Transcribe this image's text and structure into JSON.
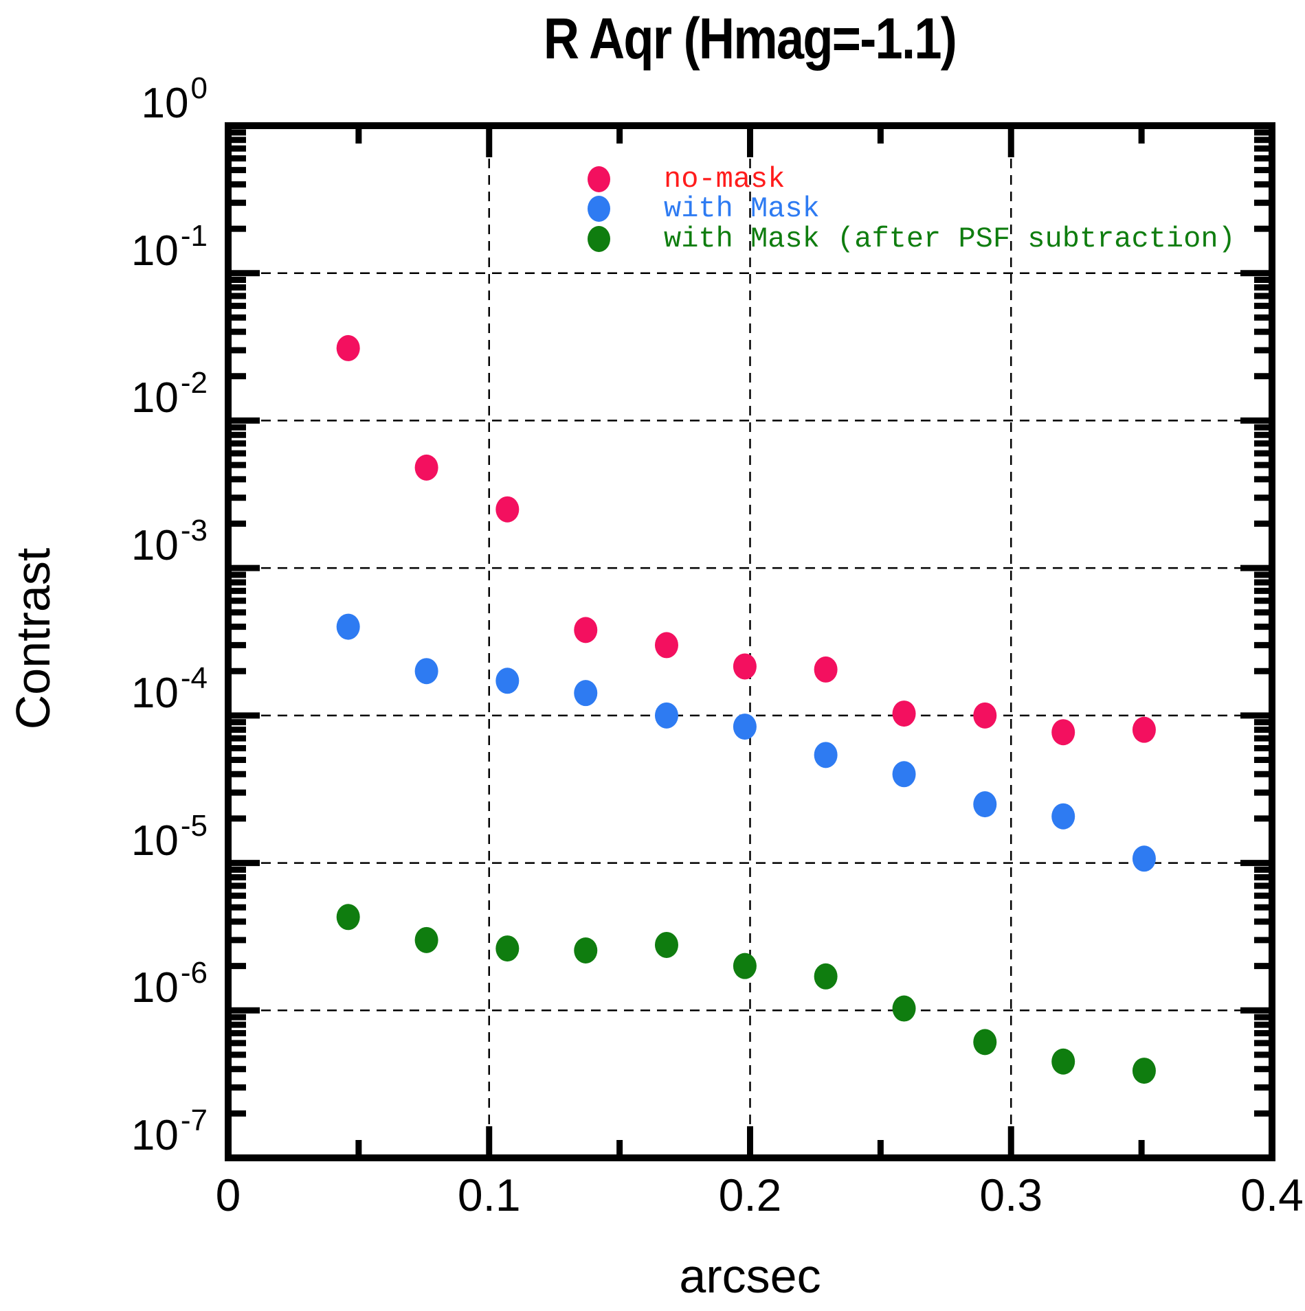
{
  "title": "R Aqr (Hmag=-1.1)",
  "axes": {
    "x_label": "arcsec",
    "y_label": "Contrast",
    "x_tick_labels": [
      "0",
      "0.1",
      "0.2",
      "0.3",
      "0.4"
    ],
    "x_tick_values": [
      0,
      0.1,
      0.2,
      0.3,
      0.4
    ],
    "x_minor_tick_values": [
      0.05,
      0.15,
      0.25,
      0.35
    ],
    "y_tick_exponents": [
      0,
      -1,
      -2,
      -3,
      -4,
      -5,
      -6,
      -7
    ],
    "y_tick_base": "10",
    "x_grid_values": [
      0.1,
      0.2,
      0.3
    ],
    "y_grid_exponents": [
      -1,
      -2,
      -3,
      -4,
      -5,
      -6
    ],
    "grid": "dashed"
  },
  "legend": {
    "items": [
      {
        "label": "no-mask",
        "marker_color": "#f3105f",
        "text_color": "#ff1c1c"
      },
      {
        "label": "with Mask",
        "marker_color": "#2e7bf2",
        "text_color": "#2e7bf2"
      },
      {
        "label": "with Mask (after PSF subtraction)",
        "marker_color": "#0f7d0f",
        "text_color": "#0f7d0f"
      }
    ]
  },
  "colors": {
    "frame": "#000000",
    "grid": "#000000",
    "background": "#ffffff"
  },
  "chart_data": {
    "type": "scatter",
    "title": "R Aqr (Hmag=-1.1)",
    "xlabel": "arcsec",
    "ylabel": "Contrast",
    "x_scale": "linear",
    "y_scale": "log",
    "xlim": [
      0,
      0.4
    ],
    "ylim_log10": [
      0,
      -7
    ],
    "legend_position": "top-center-inside",
    "x": [
      0.046,
      0.076,
      0.107,
      0.137,
      0.168,
      0.198,
      0.229,
      0.259,
      0.29,
      0.32,
      0.351
    ],
    "series": [
      {
        "name": "no-mask",
        "color": "#f3105f",
        "values": [
          0.031,
          0.0048,
          0.0025,
          0.00038,
          0.0003,
          0.000215,
          0.000205,
          0.000103,
          0.0001,
          7.7e-05,
          8e-05
        ]
      },
      {
        "name": "with Mask",
        "color": "#2e7bf2",
        "values": [
          0.0004,
          0.0002,
          0.000172,
          0.000142,
          0.0001,
          8.4e-05,
          5.4e-05,
          4e-05,
          2.5e-05,
          2.07e-05,
          1.07e-05
        ]
      },
      {
        "name": "with Mask (after PSF subtraction)",
        "color": "#0f7d0f",
        "values": [
          4.3e-06,
          3e-06,
          2.63e-06,
          2.55e-06,
          2.78e-06,
          2e-06,
          1.7e-06,
          1.03e-06,
          6.1e-07,
          4.5e-07,
          3.9e-07
        ]
      }
    ]
  }
}
